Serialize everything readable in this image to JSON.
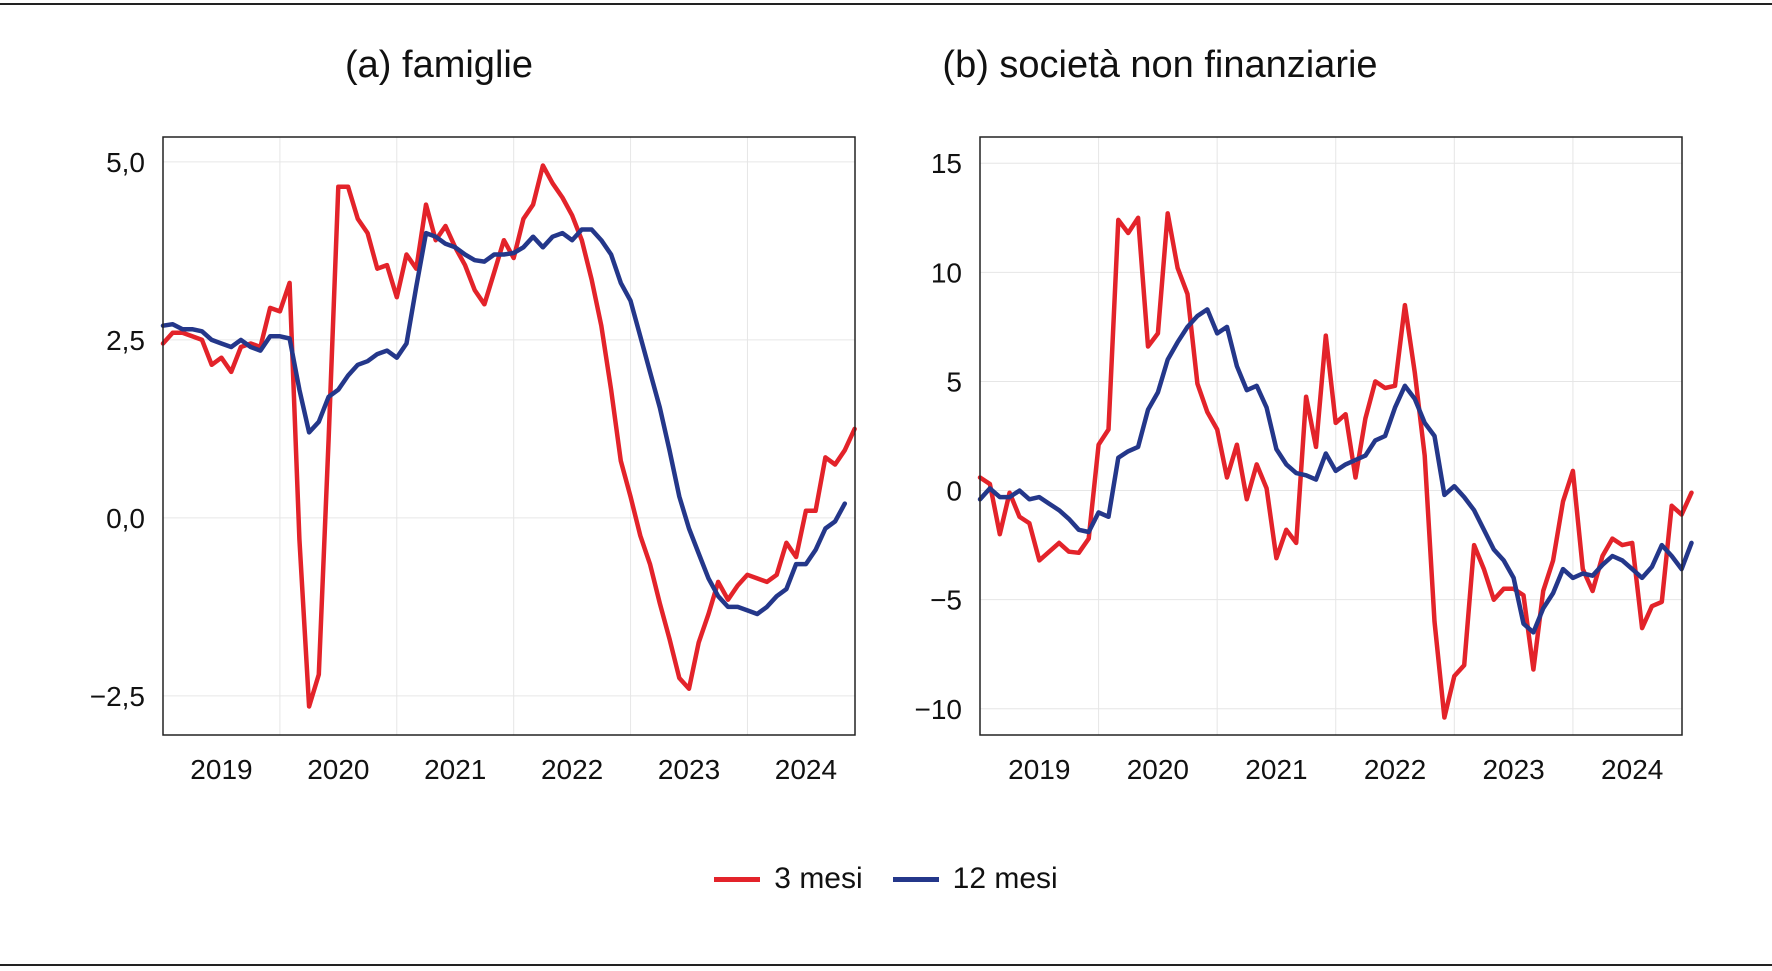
{
  "colors": {
    "s3": "#e3232a",
    "s12": "#24378a"
  },
  "legend": [
    {
      "label": "3 mesi",
      "color": "#e3232a"
    },
    {
      "label": "12 mesi",
      "color": "#24378a"
    }
  ],
  "chart_data": [
    {
      "type": "line",
      "title": "(a) famiglie",
      "xlim": [
        2018.5,
        2024.42
      ],
      "ylim": [
        -3.05,
        5.35
      ],
      "x_ticks": [
        2019,
        2020,
        2021,
        2022,
        2023,
        2024
      ],
      "y_ticks": [
        -2.5,
        0.0,
        2.5,
        5.0
      ],
      "y_tick_labels": [
        "−2,5",
        "0,0",
        "2,5",
        "5,0"
      ],
      "x_start": 2018.5,
      "x_step": 0.08333,
      "series": [
        {
          "name": "3 mesi",
          "color": "#e3232a",
          "values": [
            2.45,
            2.6,
            2.6,
            2.55,
            2.5,
            2.15,
            2.25,
            2.05,
            2.4,
            2.45,
            2.4,
            2.95,
            2.9,
            3.3,
            -0.3,
            -2.65,
            -2.2,
            1.1,
            4.65,
            4.65,
            4.2,
            4.0,
            3.5,
            3.55,
            3.1,
            3.7,
            3.5,
            4.4,
            3.9,
            4.1,
            3.8,
            3.55,
            3.2,
            3.0,
            3.45,
            3.9,
            3.65,
            4.2,
            4.4,
            4.95,
            4.7,
            4.5,
            4.25,
            3.9,
            3.35,
            2.7,
            1.8,
            0.8,
            0.3,
            -0.25,
            -0.65,
            -1.2,
            -1.7,
            -2.25,
            -2.4,
            -1.75,
            -1.35,
            -0.9,
            -1.15,
            -0.95,
            -0.8,
            -0.85,
            -0.9,
            -0.8,
            -0.35,
            -0.55,
            0.1,
            0.1,
            0.85,
            0.75,
            0.95,
            1.25
          ]
        },
        {
          "name": "12 mesi",
          "color": "#24378a",
          "values": [
            2.7,
            2.72,
            2.65,
            2.65,
            2.62,
            2.5,
            2.45,
            2.4,
            2.5,
            2.4,
            2.35,
            2.55,
            2.55,
            2.52,
            1.8,
            1.2,
            1.35,
            1.7,
            1.8,
            2.0,
            2.15,
            2.2,
            2.3,
            2.35,
            2.25,
            2.45,
            3.25,
            4.0,
            3.95,
            3.85,
            3.8,
            3.7,
            3.62,
            3.6,
            3.7,
            3.7,
            3.72,
            3.8,
            3.95,
            3.8,
            3.95,
            4.0,
            3.9,
            4.05,
            4.05,
            3.9,
            3.7,
            3.3,
            3.05,
            2.55,
            2.05,
            1.55,
            0.95,
            0.3,
            -0.15,
            -0.5,
            -0.85,
            -1.1,
            -1.25,
            -1.25,
            -1.3,
            -1.35,
            -1.25,
            -1.1,
            -1.0,
            -0.65,
            -0.65,
            -0.45,
            -0.15,
            -0.05,
            0.2
          ]
        }
      ]
    },
    {
      "type": "line",
      "title": "(b) società non finanziarie",
      "xlim": [
        2018.5,
        2024.42
      ],
      "ylim": [
        -11.2,
        16.2
      ],
      "x_ticks": [
        2019,
        2020,
        2021,
        2022,
        2023,
        2024
      ],
      "y_ticks": [
        -10,
        -5,
        0,
        5,
        10,
        15
      ],
      "y_tick_labels": [
        "−10",
        "−5",
        "0",
        "5",
        "10",
        "15"
      ],
      "x_start": 2018.5,
      "x_step": 0.08333,
      "series": [
        {
          "name": "3 mesi",
          "color": "#e3232a",
          "values": [
            0.6,
            0.3,
            -2.0,
            -0.1,
            -1.2,
            -1.5,
            -3.2,
            -2.8,
            -2.4,
            -2.8,
            -2.85,
            -2.2,
            2.1,
            2.8,
            12.4,
            11.8,
            12.5,
            6.6,
            7.2,
            12.7,
            10.2,
            9.0,
            4.9,
            3.6,
            2.8,
            0.6,
            2.1,
            -0.4,
            1.2,
            0.1,
            -3.1,
            -1.8,
            -2.4,
            4.3,
            2.0,
            7.1,
            3.1,
            3.5,
            0.6,
            3.3,
            5.0,
            4.7,
            4.8,
            8.5,
            5.4,
            1.6,
            -6.0,
            -10.4,
            -8.5,
            -8.0,
            -2.5,
            -3.6,
            -5.0,
            -4.5,
            -4.5,
            -4.8,
            -8.2,
            -4.6,
            -3.2,
            -0.5,
            0.9,
            -3.6,
            -4.6,
            -3.0,
            -2.2,
            -2.5,
            -2.4,
            -6.3,
            -5.3,
            -5.1,
            -0.7,
            -1.1,
            -0.1
          ]
        },
        {
          "name": "12 mesi",
          "color": "#24378a",
          "values": [
            -0.4,
            0.1,
            -0.3,
            -0.3,
            0.0,
            -0.4,
            -0.3,
            -0.6,
            -0.9,
            -1.3,
            -1.8,
            -1.9,
            -1.0,
            -1.2,
            1.5,
            1.8,
            2.0,
            3.7,
            4.5,
            6.0,
            6.8,
            7.5,
            8.0,
            8.3,
            7.2,
            7.5,
            5.7,
            4.6,
            4.8,
            3.8,
            1.9,
            1.2,
            0.8,
            0.7,
            0.5,
            1.7,
            0.9,
            1.2,
            1.4,
            1.6,
            2.3,
            2.5,
            3.8,
            4.8,
            4.2,
            3.1,
            2.5,
            -0.2,
            0.2,
            -0.3,
            -0.9,
            -1.8,
            -2.7,
            -3.2,
            -4.0,
            -6.1,
            -6.5,
            -5.4,
            -4.7,
            -3.6,
            -4.0,
            -3.8,
            -3.9,
            -3.4,
            -3.0,
            -3.2,
            -3.6,
            -4.0,
            -3.5,
            -2.5,
            -3.0,
            -3.6,
            -2.4
          ]
        }
      ]
    }
  ]
}
